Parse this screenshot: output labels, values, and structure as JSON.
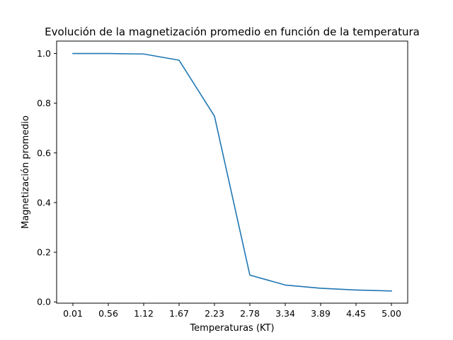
{
  "colors": {
    "series": "#1f77b4",
    "axes": "#000000",
    "background": "#ffffff"
  },
  "chart_data": {
    "type": "line",
    "title": "Evolución de la magnetización promedio en función de la temperatura",
    "xlabel": "Temperaturas (KT)",
    "ylabel": "Magnetización promedio",
    "categories": [
      "0.01",
      "0.56",
      "1.12",
      "1.67",
      "2.23",
      "2.78",
      "3.34",
      "3.89",
      "4.45",
      "5.00"
    ],
    "x": [
      0.01,
      0.56,
      1.12,
      1.67,
      2.23,
      2.78,
      3.34,
      3.89,
      4.45,
      5.0
    ],
    "values": [
      1.0,
      1.0,
      0.998,
      0.973,
      0.748,
      0.108,
      0.068,
      0.055,
      0.048,
      0.044
    ],
    "yticks": [
      "0.0",
      "0.2",
      "0.4",
      "0.6",
      "0.8",
      "1.0"
    ],
    "ylim": [
      -0.005,
      1.05
    ],
    "grid": false,
    "legend": "none"
  }
}
